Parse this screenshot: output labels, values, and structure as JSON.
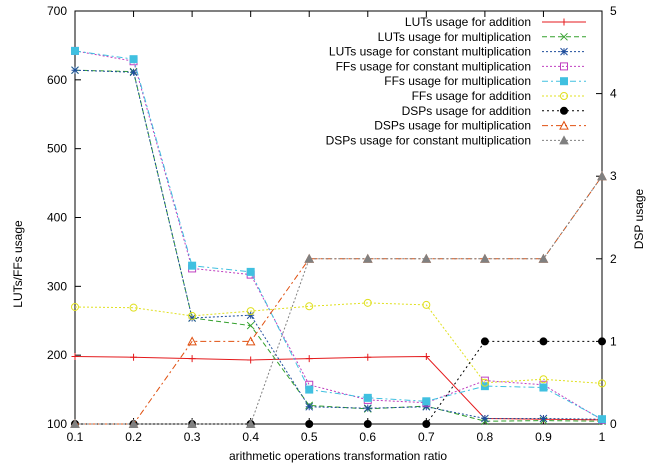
{
  "chart_data": {
    "type": "line",
    "title": "",
    "xlabel": "arithmetic operations transformation ratio",
    "ylabel_left": "LUTs/FFs usage",
    "ylabel_right": "DSP usage",
    "xlim": [
      0.1,
      1
    ],
    "ylim_left": [
      100,
      700
    ],
    "ylim_right": [
      0,
      5
    ],
    "x": [
      0.1,
      0.2,
      0.3,
      0.4,
      0.5,
      0.6,
      0.7,
      0.8,
      0.9,
      1
    ],
    "x_ticks": [
      "0.1",
      "0.2",
      "0.3",
      "0.4",
      "0.5",
      "0.6",
      "0.7",
      "0.8",
      "0.9",
      "1"
    ],
    "y_ticks_left": [
      "100",
      "200",
      "300",
      "400",
      "500",
      "600",
      "700"
    ],
    "y_ticks_right": [
      "0",
      "1",
      "2",
      "3",
      "4",
      "5"
    ],
    "grid": false,
    "legend_position": "top-right",
    "series": [
      {
        "name": "LUTs usage for addition",
        "axis": "left",
        "color": "#e41a1c",
        "dash": "",
        "marker": "plus",
        "values": [
          198,
          197,
          195,
          193,
          195,
          197,
          198,
          108,
          107,
          106
        ]
      },
      {
        "name": "LUTs usage for multiplication",
        "axis": "left",
        "color": "#33a02c",
        "dash": "5,3",
        "marker": "x",
        "values": [
          614,
          612,
          254,
          243,
          127,
          122,
          126,
          104,
          105,
          104
        ]
      },
      {
        "name": "LUTs usage for constant multiplication",
        "axis": "left",
        "color": "#1f4e9c",
        "dash": "2,2",
        "marker": "star",
        "values": [
          614,
          611,
          254,
          258,
          125,
          123,
          125,
          108,
          108,
          107
        ]
      },
      {
        "name": "FFs usage for constant multiplication",
        "axis": "left",
        "color": "#c040c0",
        "dash": "2,2",
        "marker": "square-open",
        "values": [
          642,
          627,
          326,
          317,
          157,
          135,
          131,
          163,
          157,
          106
        ]
      },
      {
        "name": "FFs  usage for multiplication",
        "axis": "left",
        "color": "#40c0e0",
        "dash": "6,3,2,3",
        "marker": "square-filled",
        "values": [
          642,
          630,
          330,
          321,
          150,
          138,
          133,
          155,
          153,
          107
        ]
      },
      {
        "name": "FFs  usage for addition",
        "axis": "left",
        "color": "#e0e020",
        "dash": "2,2",
        "marker": "circle-open",
        "values": [
          270,
          269,
          257,
          264,
          271,
          276,
          273,
          160,
          165,
          159
        ]
      },
      {
        "name": "DSPs usage for addition",
        "axis": "right",
        "color": "#000000",
        "dash": "2,3",
        "marker": "circle-filled",
        "values": [
          0,
          0,
          0,
          0,
          0,
          0,
          0,
          1,
          1,
          1
        ]
      },
      {
        "name": "DSPs usage for multiplication",
        "axis": "right",
        "color": "#e05010",
        "dash": "6,3,2,3",
        "marker": "triangle-open",
        "values": [
          0,
          0,
          1,
          1,
          2,
          2,
          2,
          2,
          2,
          3
        ]
      },
      {
        "name": "DSPs usage for constant multiplication",
        "axis": "right",
        "color": "#808080",
        "dash": "2,2",
        "marker": "triangle-filled",
        "values": [
          0,
          0,
          0,
          0,
          2,
          2,
          2,
          2,
          2,
          3
        ]
      }
    ]
  }
}
